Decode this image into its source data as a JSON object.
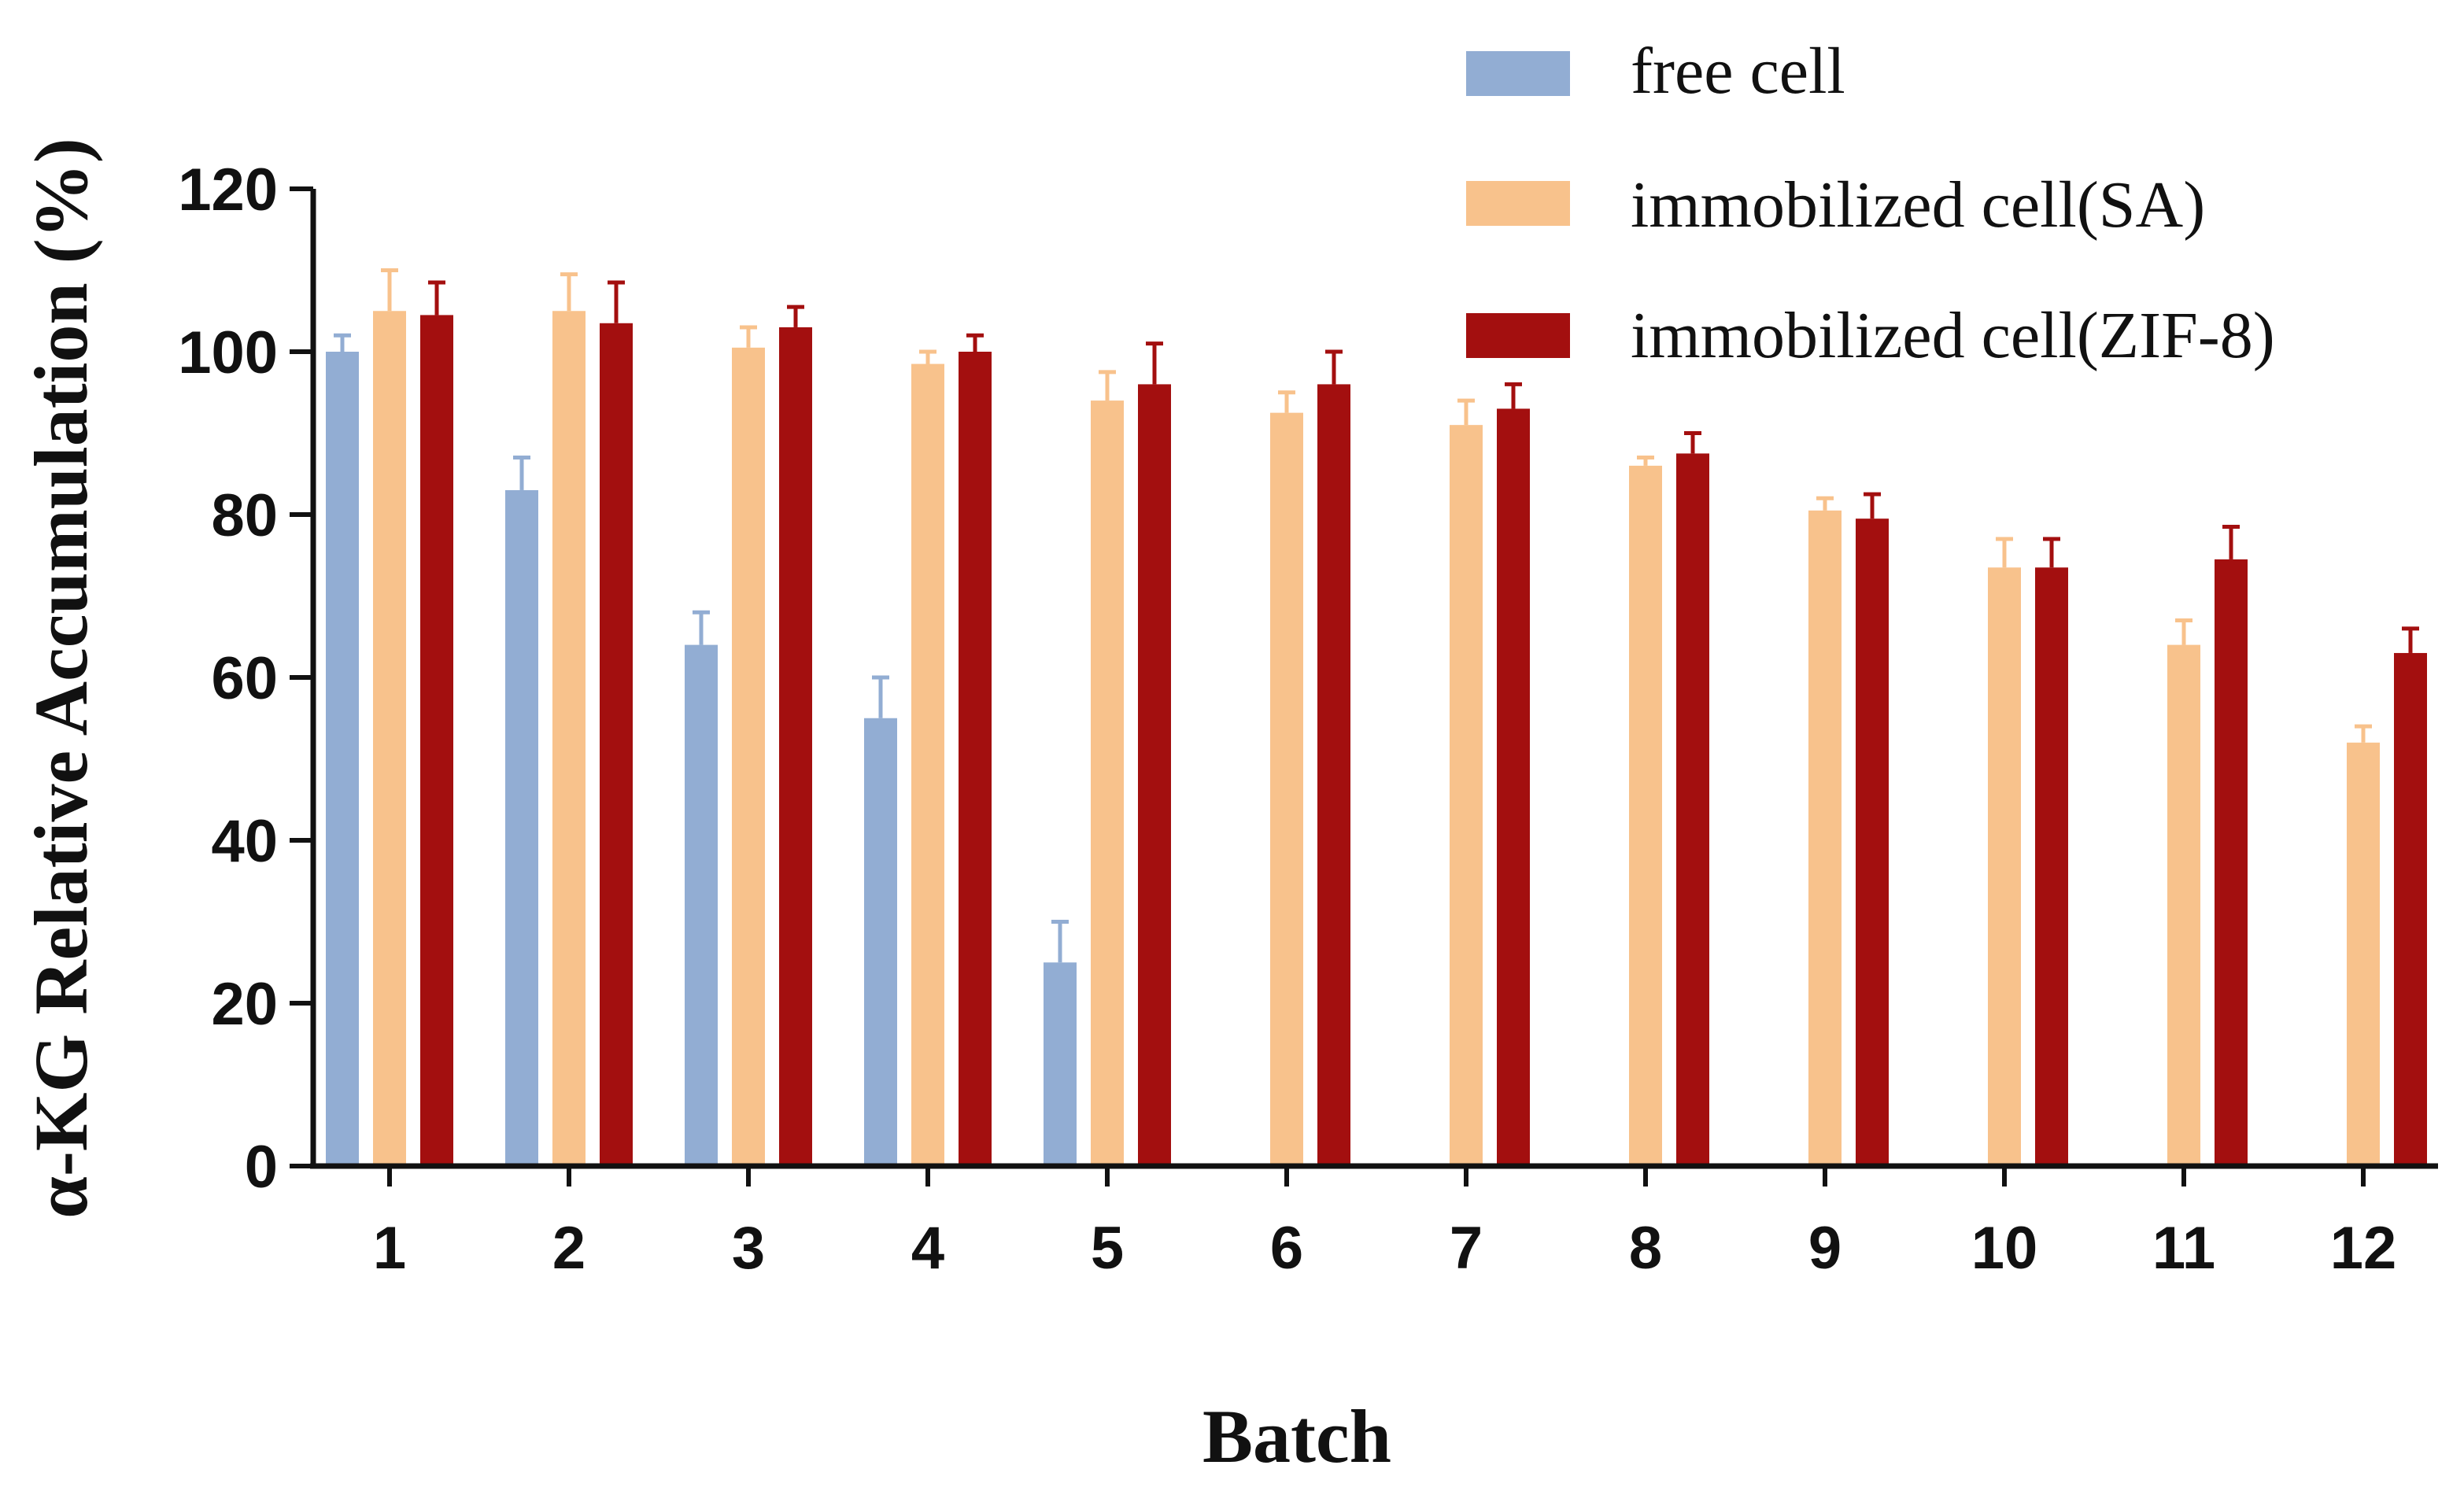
{
  "chart_data": {
    "type": "bar",
    "title": "",
    "xlabel": "Batch",
    "ylabel": "α-KG Relative Accumulation (%)",
    "ylim": [
      0,
      120
    ],
    "yticks": [
      "0",
      "20",
      "40",
      "60",
      "80",
      "100",
      "120"
    ],
    "categories": [
      "1",
      "2",
      "3",
      "4",
      "5",
      "6",
      "7",
      "8",
      "9",
      "10",
      "11",
      "12"
    ],
    "legend_position": "top-right",
    "series": [
      {
        "name": "free cell",
        "color": "#92ADD3",
        "values": [
          100,
          83,
          64,
          55,
          25,
          null,
          null,
          null,
          null,
          null,
          null,
          null
        ],
        "errors": [
          2,
          4,
          4,
          5,
          5,
          null,
          null,
          null,
          null,
          null,
          null,
          null
        ]
      },
      {
        "name": "immobilized cell(SA)",
        "color": "#F8C28C",
        "values": [
          105,
          105,
          100.5,
          98.5,
          94,
          92.5,
          91,
          86,
          80.5,
          73.5,
          64,
          52
        ],
        "errors": [
          5,
          4.5,
          2.5,
          1.5,
          3.5,
          2.5,
          3,
          1,
          1.5,
          3.5,
          3,
          2
        ]
      },
      {
        "name": "immobilized cell(ZIF-8)",
        "color": "#A30F0F",
        "values": [
          104.5,
          103.5,
          103,
          100,
          96,
          96,
          93,
          87.5,
          79.5,
          73.5,
          74.5,
          63
        ],
        "errors": [
          4,
          5,
          2.5,
          2,
          5,
          4,
          3,
          2.5,
          3,
          3.5,
          4,
          3
        ]
      }
    ]
  }
}
